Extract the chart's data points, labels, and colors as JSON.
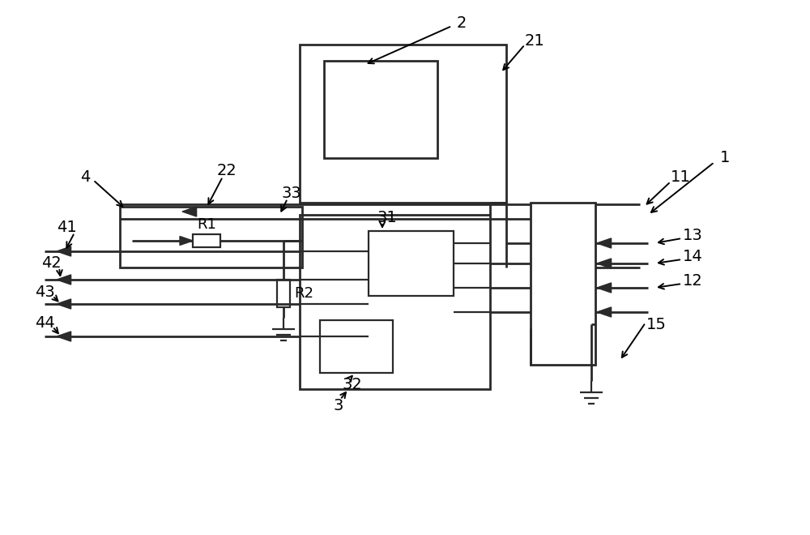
{
  "line_color": "#2a2a2a",
  "lw_main": 2.0,
  "lw_thin": 1.6,
  "arrow_size": 12,
  "font_size": 14,
  "bg_color": "#ffffff"
}
